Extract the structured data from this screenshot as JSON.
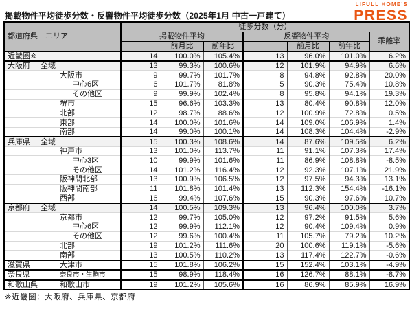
{
  "title": "掲載物件平均徒歩分数・反響物件平均徒歩分数（2025年1月 中古一戸建て）",
  "logo": {
    "top": "LIFULL HOME'S",
    "main": "PRESS"
  },
  "footnote": "※近畿圏：大阪府、兵庫県、京都府",
  "colors": {
    "logo_orange": "#e95513",
    "header_bg": "#bfbfbf",
    "shaded_row_bg": "#f2f2f2",
    "border_dark": "#000000"
  },
  "table": {
    "header": {
      "col_pref_area": "都道府県　エリア",
      "walk_minutes": "徒歩分数（分）",
      "listed_avg": "掲載物件平均",
      "response_avg": "反響物件平均",
      "divergence": "乖離率",
      "mom": "前月比",
      "yoy": "前年比"
    },
    "rows": [
      {
        "pref": "近畿圏※",
        "area": "",
        "indent": 0,
        "shaded": true,
        "group_start": true,
        "values": [
          "14",
          "100.0%",
          "105.4%",
          "13",
          "96.0%",
          "101.0%",
          "6.2%"
        ]
      },
      {
        "pref": "大阪府",
        "area": "全域",
        "indent": 1,
        "shaded": true,
        "group_start": true,
        "values": [
          "13",
          "99.3%",
          "100.6%",
          "12",
          "101.9%",
          "94.9%",
          "6.6%"
        ]
      },
      {
        "pref": "",
        "area": "大阪市",
        "indent": 2,
        "values": [
          "9",
          "99.7%",
          "101.7%",
          "8",
          "94.8%",
          "92.8%",
          "20.0%"
        ]
      },
      {
        "pref": "",
        "area": "中心6区",
        "indent": 3,
        "values": [
          "6",
          "101.7%",
          "81.8%",
          "5",
          "90.3%",
          "75.4%",
          "10.8%"
        ]
      },
      {
        "pref": "",
        "area": "その他区",
        "indent": 3,
        "values": [
          "9",
          "99.9%",
          "102.4%",
          "8",
          "95.8%",
          "94.1%",
          "19.3%"
        ]
      },
      {
        "pref": "",
        "area": "堺市",
        "indent": 2,
        "values": [
          "15",
          "96.6%",
          "103.3%",
          "13",
          "80.4%",
          "90.8%",
          "12.0%"
        ]
      },
      {
        "pref": "",
        "area": "北部",
        "indent": 2,
        "values": [
          "12",
          "98.7%",
          "88.6%",
          "12",
          "100.9%",
          "72.8%",
          "0.5%"
        ]
      },
      {
        "pref": "",
        "area": "東部",
        "indent": 2,
        "values": [
          "14",
          "100.0%",
          "101.6%",
          "14",
          "109.0%",
          "106.9%",
          "1.4%"
        ]
      },
      {
        "pref": "",
        "area": "南部",
        "indent": 2,
        "values": [
          "14",
          "99.0%",
          "100.1%",
          "14",
          "108.3%",
          "104.4%",
          "-2.9%"
        ]
      },
      {
        "pref": "兵庫県",
        "area": "全域",
        "indent": 1,
        "shaded": true,
        "group_start": true,
        "values": [
          "15",
          "100.3%",
          "108.6%",
          "14",
          "87.6%",
          "109.5%",
          "6.2%"
        ]
      },
      {
        "pref": "",
        "area": "神戸市",
        "indent": 2,
        "values": [
          "13",
          "101.0%",
          "113.7%",
          "11",
          "91.1%",
          "107.3%",
          "17.4%"
        ]
      },
      {
        "pref": "",
        "area": "中心3区",
        "indent": 3,
        "values": [
          "10",
          "99.9%",
          "101.6%",
          "11",
          "86.9%",
          "108.8%",
          "-8.5%"
        ]
      },
      {
        "pref": "",
        "area": "その他区",
        "indent": 3,
        "values": [
          "14",
          "101.2%",
          "116.4%",
          "12",
          "92.3%",
          "107.1%",
          "21.9%"
        ]
      },
      {
        "pref": "",
        "area": "阪神間北部",
        "indent": 2,
        "values": [
          "13",
          "100.9%",
          "106.5%",
          "12",
          "97.5%",
          "94.3%",
          "13.1%"
        ]
      },
      {
        "pref": "",
        "area": "阪神間南部",
        "indent": 2,
        "values": [
          "11",
          "101.8%",
          "101.4%",
          "13",
          "112.3%",
          "154.4%",
          "-16.1%"
        ]
      },
      {
        "pref": "",
        "area": "西部",
        "indent": 2,
        "values": [
          "16",
          "99.4%",
          "107.6%",
          "15",
          "90.3%",
          "97.6%",
          "10.7%"
        ]
      },
      {
        "pref": "京都府",
        "area": "全域",
        "indent": 1,
        "shaded": true,
        "group_start": true,
        "values": [
          "14",
          "100.5%",
          "109.3%",
          "13",
          "96.4%",
          "100.0%",
          "3.7%"
        ]
      },
      {
        "pref": "",
        "area": "京都市",
        "indent": 2,
        "values": [
          "12",
          "99.7%",
          "105.0%",
          "12",
          "97.2%",
          "91.5%",
          "5.6%"
        ]
      },
      {
        "pref": "",
        "area": "中心6区",
        "indent": 3,
        "values": [
          "12",
          "99.9%",
          "112.1%",
          "12",
          "90.4%",
          "109.4%",
          "0.9%"
        ]
      },
      {
        "pref": "",
        "area": "その他区",
        "indent": 3,
        "values": [
          "12",
          "99.6%",
          "100.4%",
          "11",
          "105.7%",
          "79.2%",
          "10.2%"
        ]
      },
      {
        "pref": "",
        "area": "北部",
        "indent": 2,
        "values": [
          "19",
          "101.2%",
          "111.6%",
          "20",
          "100.6%",
          "119.1%",
          "-5.6%"
        ]
      },
      {
        "pref": "",
        "area": "南部",
        "indent": 2,
        "values": [
          "13",
          "100.5%",
          "110.2%",
          "13",
          "117.4%",
          "122.7%",
          "-0.6%"
        ]
      },
      {
        "pref": "滋賀県",
        "area": "大津市",
        "indent": 2,
        "group_start": true,
        "values": [
          "15",
          "101.8%",
          "106.2%",
          "15",
          "152.4%",
          "103.1%",
          "-4.9%"
        ]
      },
      {
        "pref": "奈良県",
        "area": "奈良市・生駒市",
        "indent": 2,
        "small": true,
        "group_start": true,
        "values": [
          "15",
          "98.9%",
          "118.4%",
          "16",
          "126.7%",
          "88.1%",
          "-8.7%"
        ]
      },
      {
        "pref": "和歌山県",
        "area": "和歌山市",
        "indent": 2,
        "group_start": true,
        "values": [
          "19",
          "101.2%",
          "105.6%",
          "16",
          "86.9%",
          "85.9%",
          "16.9%"
        ]
      }
    ]
  }
}
